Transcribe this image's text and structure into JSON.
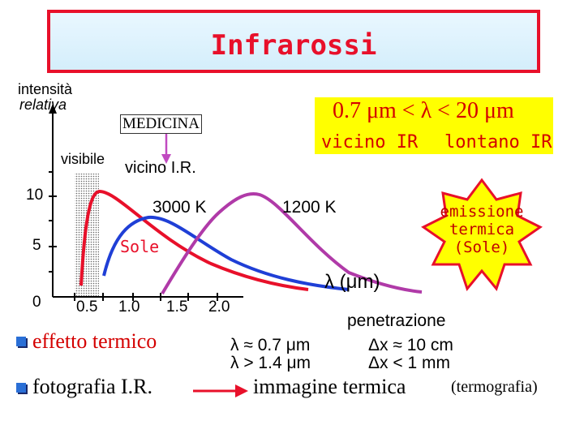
{
  "title": "Infrarossi",
  "y_axis": {
    "line1": "intensità",
    "line2": "relativa",
    "ticks": [
      "10",
      "5",
      "0"
    ]
  },
  "x_axis": {
    "ticks": [
      "0.5",
      "1.0",
      "1.5",
      "2.0"
    ]
  },
  "labels": {
    "medicina": "MEDICINA",
    "range": "0.7 μm < λ < 20 μm",
    "vicino_ir": "vicino IR",
    "lontano_ir": "lontano IR",
    "visibile": "visibile",
    "vicino_ir_short": "vicino  I.R.",
    "k3000": "3000 K",
    "k1200": "1200 K",
    "sole": "Sole",
    "lambda_unit": "λ (μm)"
  },
  "burst": {
    "line1": "emissione",
    "line2": "termica",
    "line3": "(Sole)"
  },
  "bottom": {
    "effetto_termico": "effetto  termico",
    "fotografia": "fotografia  I.R.",
    "lambda1": "λ ≈ 0.7 μm",
    "lambda2": "λ > 1.4 μm",
    "penetrazione": "penetrazione",
    "dx1": "Δx ≈ 10 cm",
    "dx2": "Δx < 1 mm",
    "immagine": "immagine  termica",
    "termografia": "(termografia)"
  },
  "colors": {
    "accent_red": "#e8102a",
    "yellow": "#ffff00",
    "blue_curve": "#1f3fd6",
    "purple_curve": "#b03aa8",
    "arrow_magenta": "#c04ac0"
  }
}
